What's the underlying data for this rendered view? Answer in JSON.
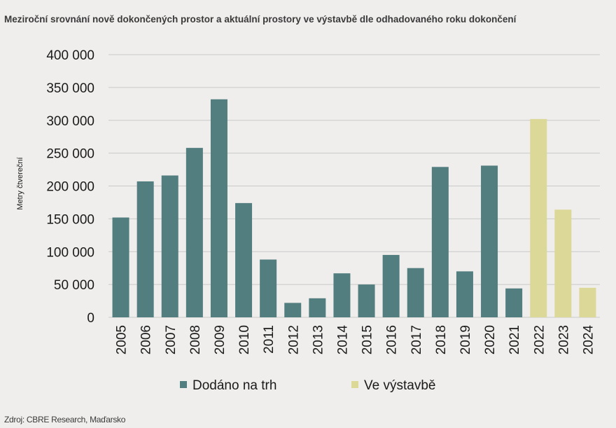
{
  "title": "Meziroční srovnání nově dokončených prostor a aktuální prostory ve výstavbě dle odhadovaného roku dokončení",
  "source": "Zdroj: CBRE Research, Maďarsko",
  "colors": {
    "delivered": "#537e80",
    "construction": "#dcd897",
    "grid": "#c9c9c9",
    "text": "#1a1a1a"
  },
  "chart_data": {
    "type": "bar",
    "categories": [
      "2005",
      "2006",
      "2007",
      "2008",
      "2009",
      "2010",
      "2011",
      "2012",
      "2013",
      "2014",
      "2015",
      "2016",
      "2017",
      "2018",
      "2019",
      "2020",
      "2021",
      "2022",
      "2023",
      "2024"
    ],
    "series": [
      {
        "name": "Dodáno na trh",
        "color": "#537e80",
        "values": [
          152000,
          207000,
          216000,
          258000,
          332000,
          174000,
          88000,
          22000,
          29000,
          67000,
          50000,
          95000,
          75000,
          229000,
          70000,
          231000,
          44000,
          null,
          null,
          null
        ]
      },
      {
        "name": "Ve výstavbě",
        "color": "#dcd897",
        "values": [
          null,
          null,
          null,
          null,
          null,
          null,
          null,
          null,
          null,
          null,
          null,
          null,
          null,
          null,
          null,
          null,
          null,
          302000,
          164000,
          45000
        ]
      }
    ],
    "ylabel": "Metry čtvereční",
    "xlabel": "",
    "ylim": [
      0,
      400000
    ],
    "yticks": [
      0,
      50000,
      100000,
      150000,
      200000,
      250000,
      300000,
      350000,
      400000
    ],
    "ytick_labels": [
      "0",
      "50 000",
      "100 000",
      "150 000",
      "200 000",
      "250 000",
      "300 000",
      "350 000",
      "400 000"
    ],
    "grid": true,
    "legend_position": "bottom"
  }
}
